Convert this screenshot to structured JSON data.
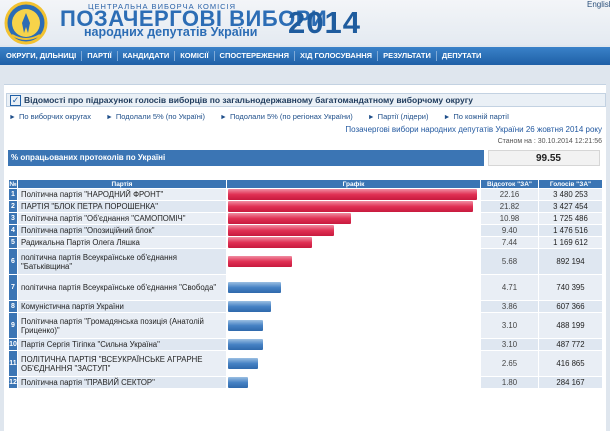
{
  "header": {
    "cvk_label": "ЦЕНТРАЛЬНА ВИБОРЧА КОМІСІЯ",
    "title": "ПОЗАЧЕРГОВІ ВИБОРИ",
    "subtitle": "народних депутатів України",
    "year": "2014",
    "language": "English"
  },
  "nav": {
    "items": [
      "ОКРУГИ, ДІЛЬНИЦІ",
      "ПАРТІЇ",
      "КАНДИДАТИ",
      "КОМІСІЇ",
      "СПОСТЕРЕЖЕННЯ",
      "ХІД ГОЛОСУВАННЯ",
      "РЕЗУЛЬТАТИ",
      "ДЕПУТАТИ"
    ]
  },
  "info": {
    "title": "Відомості про підрахунок голосів виборців по загальнодержавному багатомандатному виборчому округу"
  },
  "subnav": {
    "items": [
      "По виборчих округах",
      "Подолали 5% (по Україні)",
      "Подолали 5% (по регіонах України)",
      "Партії (лідери)",
      "По кожній партії"
    ]
  },
  "election_title": "Позачергові вибори народних депутатів України 26 жовтня 2014 року",
  "updated": "Станом на : 30.10.2014 12:21:56",
  "processed": {
    "label": "% опрацьованих протоколів по Україні",
    "value": "99.55"
  },
  "table": {
    "headers": {
      "num": "№",
      "party": "Партія",
      "graph": "Графік",
      "percent": "Відсоток \"ЗА\"",
      "votes": "Голосів \"ЗА\""
    },
    "rows": [
      {
        "num": "1",
        "party": "Політична партія \"НАРОДНИЙ ФРОНТ\"",
        "percent": "22.16",
        "votes": "3 480 253",
        "pct_value": 22.16,
        "color": "red"
      },
      {
        "num": "2",
        "party": "ПАРТІЯ \"БЛОК ПЕТРА ПОРОШЕНКА\"",
        "percent": "21.82",
        "votes": "3 427 454",
        "pct_value": 21.82,
        "color": "red"
      },
      {
        "num": "3",
        "party": "Політична партія \"Об'єднання \"САМОПОМІЧ\"",
        "percent": "10.98",
        "votes": "1 725 486",
        "pct_value": 10.98,
        "color": "red"
      },
      {
        "num": "4",
        "party": "Політична партія \"Опозиційний блок\"",
        "percent": "9.40",
        "votes": "1 476 516",
        "pct_value": 9.4,
        "color": "red"
      },
      {
        "num": "5",
        "party": "Радикальна Партія Олега Ляшка",
        "percent": "7.44",
        "votes": "1 169 612",
        "pct_value": 7.44,
        "color": "red"
      },
      {
        "num": "6",
        "party": "політична партія Всеукраїнське об'єднання \"Батьківщина\"",
        "percent": "5.68",
        "votes": "892 194",
        "pct_value": 5.68,
        "color": "red"
      },
      {
        "num": "7",
        "party": "політична партія Всеукраїнське об'єднання \"Свобода\"",
        "percent": "4.71",
        "votes": "740 395",
        "pct_value": 4.71,
        "color": "blue"
      },
      {
        "num": "8",
        "party": "Комуністична партія України",
        "percent": "3.86",
        "votes": "607 366",
        "pct_value": 3.86,
        "color": "blue"
      },
      {
        "num": "9",
        "party": "Політична партія \"Громадянська позиція (Анатолій Гриценко)\"",
        "percent": "3.10",
        "votes": "488 199",
        "pct_value": 3.1,
        "color": "blue"
      },
      {
        "num": "10",
        "party": "Партія Сергія Тігіпка \"Сильна Україна\"",
        "percent": "3.10",
        "votes": "487 772",
        "pct_value": 3.1,
        "color": "blue"
      },
      {
        "num": "11",
        "party": "ПОЛІТИЧНА ПАРТІЯ \"ВСЕУКРАЇНСЬКЕ АГРАРНЕ ОБ'ЄДНАННЯ \"ЗАСТУП\"",
        "percent": "2.65",
        "votes": "416 865",
        "pct_value": 2.65,
        "color": "blue"
      },
      {
        "num": "12",
        "party": "Політична партія \"ПРАВИЙ СЕКТОР\"",
        "percent": "1.80",
        "votes": "284 167",
        "pct_value": 1.8,
        "color": "blue"
      }
    ]
  },
  "colors": {
    "accent": "#3b75b4",
    "bar_above": "#e03054",
    "bar_below": "#4682c4"
  }
}
